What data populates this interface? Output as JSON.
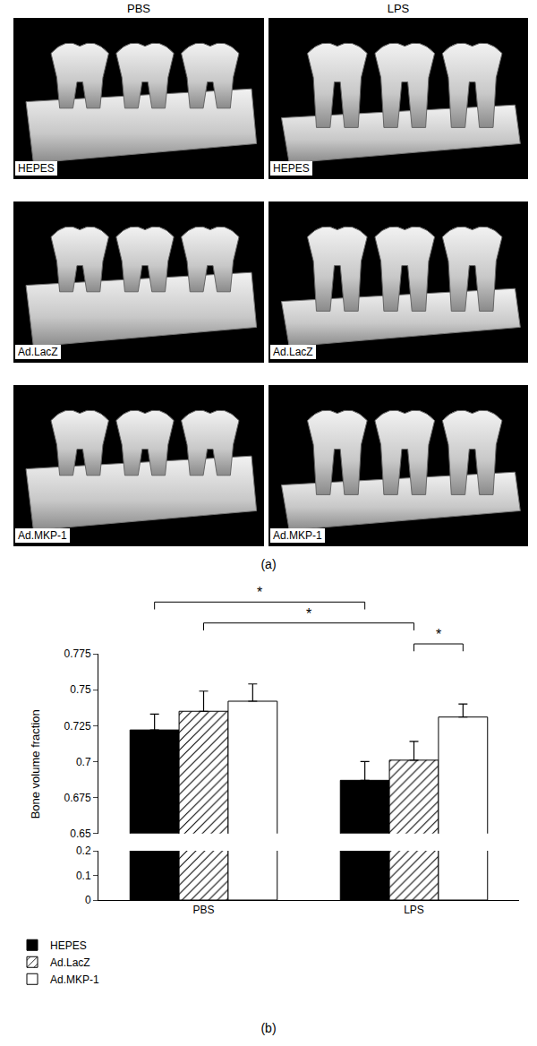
{
  "panel_a": {
    "label": "(a)",
    "columns": [
      "PBS",
      "LPS"
    ],
    "rows": [
      "HEPES",
      "Ad.LacZ",
      "Ad.MKP-1"
    ]
  },
  "chart_data": {
    "type": "bar",
    "label": "(b)",
    "y_label": "Bone volume fraction",
    "categories": [
      "PBS",
      "LPS"
    ],
    "series": [
      {
        "name": "HEPES",
        "color": "#000000",
        "values": [
          0.722,
          0.687
        ],
        "error": [
          0.011,
          0.013
        ]
      },
      {
        "name": "Ad.LacZ",
        "color": "#ffffff",
        "marker": "hatch",
        "values": [
          0.735,
          0.701
        ],
        "error": [
          0.014,
          0.013
        ]
      },
      {
        "name": "Ad.MKP-1",
        "color": "#ffffff",
        "values": [
          0.742,
          0.731
        ],
        "error": [
          0.012,
          0.009
        ]
      }
    ],
    "ylim": [
      0.65,
      0.775
    ],
    "yticks": [
      0.65,
      0.675,
      0.7,
      0.725,
      0.75,
      0.775
    ],
    "y2lim": [
      0,
      0.2
    ],
    "y2ticks": [
      0,
      0.1,
      0.2
    ],
    "legend": "bottom left",
    "significance": [
      {
        "text": "*",
        "between": [
          {
            "category": "PBS",
            "series": "HEPES"
          },
          {
            "category": "LPS",
            "series": "HEPES"
          }
        ]
      },
      {
        "text": "*",
        "between": [
          {
            "category": "PBS",
            "series": "Ad.LacZ"
          },
          {
            "category": "LPS",
            "series": "Ad.LacZ"
          }
        ]
      },
      {
        "text": "*",
        "between": [
          {
            "category": "LPS",
            "series": "Ad.LacZ"
          },
          {
            "category": "LPS",
            "series": "Ad.MKP-1"
          }
        ]
      }
    ]
  }
}
